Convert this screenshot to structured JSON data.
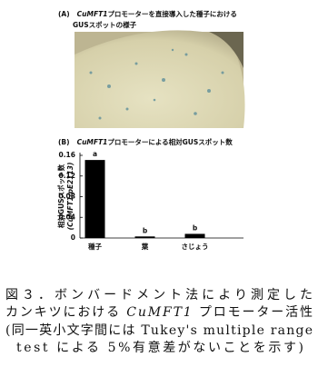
{
  "figure_a": {
    "label": "(A)",
    "title_gene": "CuMFT1",
    "title_rest": "プロモーターを直接導入した種子における",
    "title_line2": "GUSスポットの様子"
  },
  "chart_data": {
    "type": "bar",
    "panel_label": "(B)",
    "title_gene": "CuMFT1",
    "title": "プロモーターによる相対GUSスポット数",
    "y_label": "相対GUSスポット数",
    "y_label_sub": "(CuMFT1/pE2113)",
    "categories": [
      "種子",
      "葉",
      "さじょう"
    ],
    "values": [
      0.151,
      0.003,
      0.008
    ],
    "significance": [
      "a",
      "b",
      "b"
    ],
    "color": "#000000",
    "ylim": [
      0,
      0.16
    ],
    "yticks": [
      0,
      0.04,
      0.08,
      0.12,
      0.16
    ]
  },
  "caption": {
    "line1": "図３．ボンバードメント法により測定した",
    "line2_pre": "カンキツにおける ",
    "line2_gene": "CuMFT1",
    "line2_post": " プロモーター活性",
    "line3": "(同一英小文字間には Tukey's multiple range",
    "line4": "test による 5%有意差がないことを示す)"
  }
}
